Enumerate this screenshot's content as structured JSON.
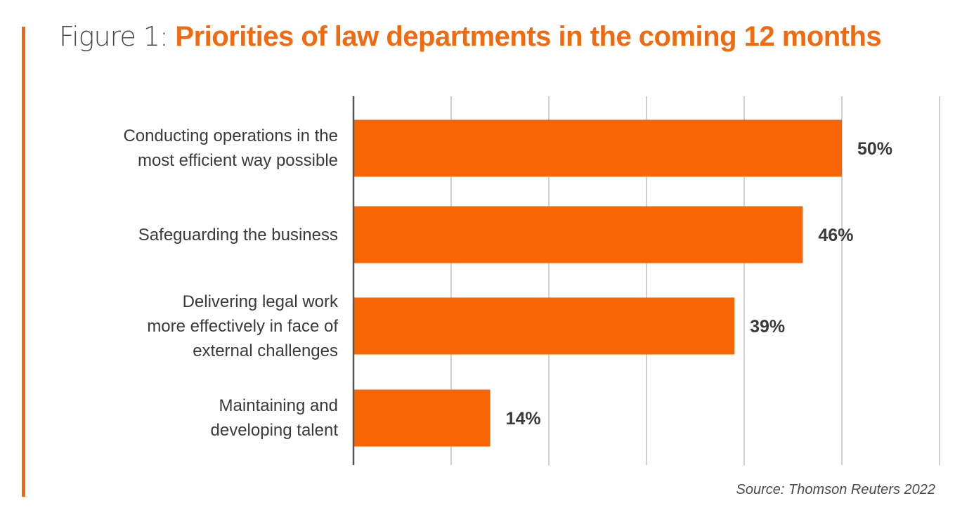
{
  "colors": {
    "accent": "#f26a0f",
    "bar": "#f76505",
    "grid": "#d0d0d0",
    "axis": "#555555",
    "text": "#3a3a3a"
  },
  "chart_data": {
    "type": "bar",
    "orientation": "horizontal",
    "title_prefix": "Figure 1:",
    "title": "Priorities of law departments in the coming 12 months",
    "categories": [
      [
        "Conducting operations in the",
        "most efficient way possible"
      ],
      [
        "Safeguarding the business"
      ],
      [
        "Delivering legal work",
        "more effectively in face of",
        "external challenges"
      ],
      [
        "Maintaining and",
        "developing talent"
      ]
    ],
    "values": [
      50,
      46,
      39,
      14
    ],
    "value_labels": [
      "50%",
      "46%",
      "39%",
      "14%"
    ],
    "xlim": [
      0,
      60
    ],
    "grid_step": 10,
    "grid": true,
    "xlabel": "",
    "ylabel": "",
    "source": "Source: Thomson Reuters 2022"
  }
}
